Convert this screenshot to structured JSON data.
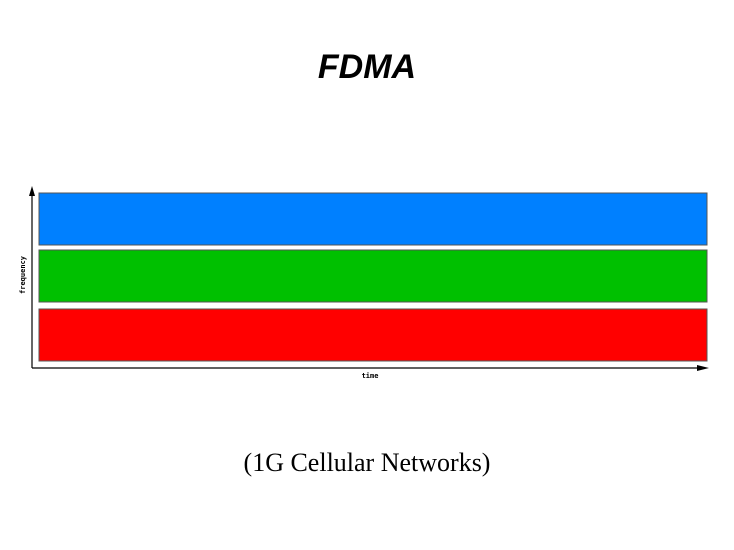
{
  "slide": {
    "title": "FDMA",
    "subtitle": "(1G Cellular Networks)"
  },
  "diagram": {
    "x_axis_label": "time",
    "y_axis_label": "frequency",
    "bands": [
      {
        "color": "#0080FF"
      },
      {
        "color": "#00C000"
      },
      {
        "color": "#FF0000"
      }
    ]
  }
}
